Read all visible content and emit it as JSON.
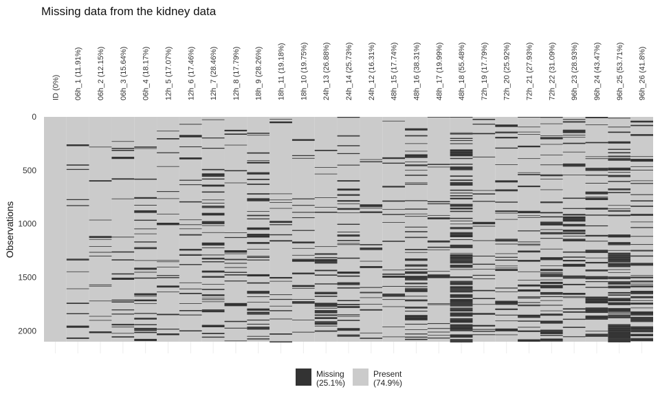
{
  "chart_data": {
    "type": "heatmap",
    "title": "Missing data from the kidney data",
    "xlabel": "",
    "ylabel": "Observations",
    "n_observations": 2100,
    "y_ticks": [
      0,
      500,
      1000,
      1500,
      2000
    ],
    "columns": [
      {
        "label": "ID (0%)",
        "missing_pct": 0
      },
      {
        "label": "06h_1 (11.91%)",
        "missing_pct": 11.91
      },
      {
        "label": "06h_2 (12.15%)",
        "missing_pct": 12.15
      },
      {
        "label": "06h_3 (15.64%)",
        "missing_pct": 15.64
      },
      {
        "label": "06h_4 (18.17%)",
        "missing_pct": 18.17
      },
      {
        "label": "12h_5 (17.07%)",
        "missing_pct": 17.07
      },
      {
        "label": "12h_6 (17.46%)",
        "missing_pct": 17.46
      },
      {
        "label": "12h_7 (28.46%)",
        "missing_pct": 28.46
      },
      {
        "label": "12h_8 (17.79%)",
        "missing_pct": 17.79
      },
      {
        "label": "18h_9 (28.26%)",
        "missing_pct": 28.26
      },
      {
        "label": "18h_11 (19.18%)",
        "missing_pct": 19.18
      },
      {
        "label": "18h_10 (19.75%)",
        "missing_pct": 19.75
      },
      {
        "label": "24h_13 (26.88%)",
        "missing_pct": 26.88
      },
      {
        "label": "24h_14 (25.73%)",
        "missing_pct": 25.73
      },
      {
        "label": "24h_12 (16.31%)",
        "missing_pct": 16.31
      },
      {
        "label": "48h_15 (17.74%)",
        "missing_pct": 17.74
      },
      {
        "label": "48h_16 (38.31%)",
        "missing_pct": 38.31
      },
      {
        "label": "48h_17 (19.99%)",
        "missing_pct": 19.99
      },
      {
        "label": "48h_18 (55.48%)",
        "missing_pct": 55.48
      },
      {
        "label": "72h_19 (17.79%)",
        "missing_pct": 17.79
      },
      {
        "label": "72h_20 (25.92%)",
        "missing_pct": 25.92
      },
      {
        "label": "72h_21 (27.93%)",
        "missing_pct": 27.93
      },
      {
        "label": "72h_22 (31.09%)",
        "missing_pct": 31.09
      },
      {
        "label": "96h_23 (28.93%)",
        "missing_pct": 28.93
      },
      {
        "label": "96h_24 (43.47%)",
        "missing_pct": 43.47
      },
      {
        "label": "96h_25 (53.71%)",
        "missing_pct": 53.71
      },
      {
        "label": "96h_26 (41.8%)",
        "missing_pct": 41.8
      }
    ],
    "legend": {
      "position": "bottom",
      "items": [
        {
          "name": "Missing",
          "pct": "(25.1%)",
          "color": "#333333"
        },
        {
          "name": "Present",
          "pct": "(74.9%)",
          "color": "#cbcbcb"
        }
      ]
    },
    "colors": {
      "missing": "#333333",
      "present": "#cbcbcb"
    },
    "grid": true
  }
}
